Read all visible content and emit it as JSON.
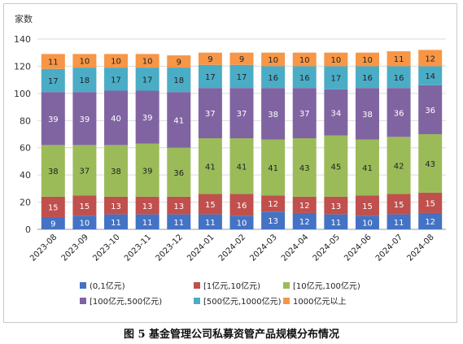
{
  "caption": "图 5   基金管理公司私募资管产品规模分布情况",
  "chart_data": {
    "type": "bar",
    "stacked": true,
    "ylabel": "家数",
    "ylim": [
      0,
      140
    ],
    "yticks": [
      0,
      20,
      40,
      60,
      80,
      100,
      120,
      140
    ],
    "grid": true,
    "legend_position": "bottom",
    "categories": [
      "2023-08",
      "2023-09",
      "2023-10",
      "2023-11",
      "2023-12",
      "2024-01",
      "2024-02",
      "2024-03",
      "2024-04",
      "2024-05",
      "2024-06",
      "2024-07",
      "2024-08"
    ],
    "series": [
      {
        "name": "(0,1亿元)",
        "color": "#4472c4",
        "values": [
          9,
          10,
          11,
          11,
          11,
          11,
          10,
          13,
          12,
          11,
          10,
          11,
          12
        ]
      },
      {
        "name": "[1亿元,10亿元)",
        "color": "#c0504d",
        "values": [
          15,
          15,
          13,
          13,
          13,
          15,
          16,
          12,
          12,
          13,
          15,
          15,
          15
        ]
      },
      {
        "name": "[10亿元,100亿元)",
        "color": "#9bbb59",
        "values": [
          38,
          37,
          38,
          39,
          36,
          41,
          41,
          41,
          43,
          45,
          41,
          42,
          43
        ]
      },
      {
        "name": "[100亿元,500亿元)",
        "color": "#8064a2",
        "values": [
          39,
          39,
          40,
          39,
          41,
          37,
          37,
          38,
          37,
          34,
          38,
          36,
          36
        ]
      },
      {
        "name": "[500亿元,1000亿元)",
        "color": "#4bacc6",
        "values": [
          17,
          18,
          17,
          17,
          18,
          17,
          17,
          16,
          16,
          17,
          16,
          16,
          14
        ]
      },
      {
        "name": "1000亿元以上",
        "color": "#f79646",
        "values": [
          11,
          10,
          10,
          10,
          9,
          9,
          9,
          10,
          10,
          10,
          10,
          11,
          12
        ]
      }
    ]
  }
}
